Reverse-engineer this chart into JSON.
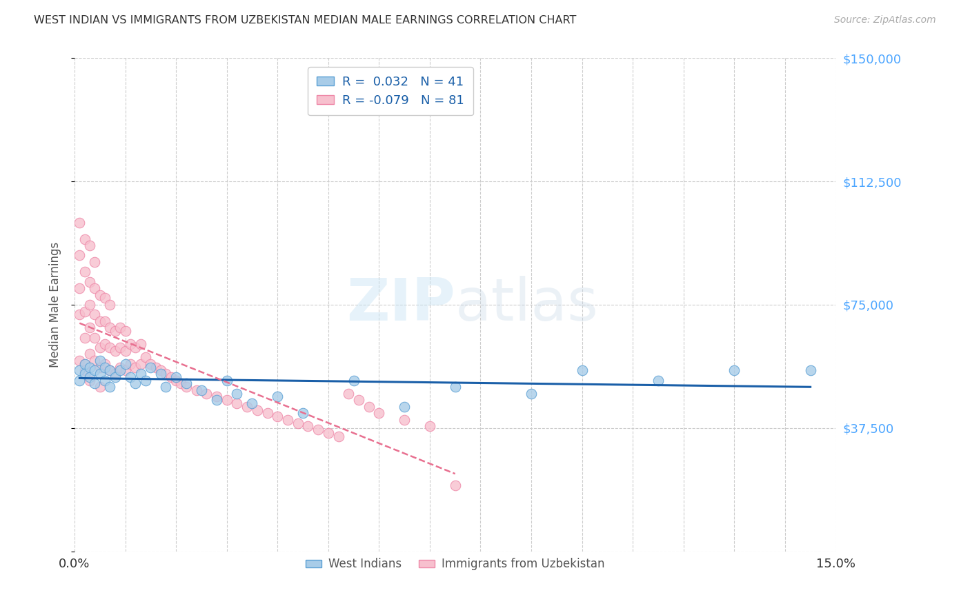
{
  "title": "WEST INDIAN VS IMMIGRANTS FROM UZBEKISTAN MEDIAN MALE EARNINGS CORRELATION CHART",
  "source": "Source: ZipAtlas.com",
  "ylabel": "Median Male Earnings",
  "watermark": "ZIPatlas",
  "xlim": [
    0.0,
    0.15
  ],
  "ylim": [
    0,
    150000
  ],
  "yticks": [
    0,
    37500,
    75000,
    112500,
    150000
  ],
  "ytick_labels": [
    "",
    "$37,500",
    "$75,000",
    "$112,500",
    "$150,000"
  ],
  "legend_blue_r": "0.032",
  "legend_blue_n": "41",
  "legend_pink_r": "-0.079",
  "legend_pink_n": "81",
  "blue_scatter_color": "#a8cce8",
  "blue_edge_color": "#5a9fd4",
  "pink_scatter_color": "#f7c0ce",
  "pink_edge_color": "#ee88a8",
  "blue_line_color": "#1a5fa8",
  "pink_line_color": "#e87090",
  "grid_color": "#cccccc",
  "right_ytick_color": "#4da6ff",
  "west_indians_x": [
    0.001,
    0.001,
    0.002,
    0.002,
    0.003,
    0.003,
    0.004,
    0.004,
    0.005,
    0.005,
    0.006,
    0.006,
    0.007,
    0.007,
    0.008,
    0.009,
    0.01,
    0.011,
    0.012,
    0.013,
    0.014,
    0.015,
    0.017,
    0.018,
    0.02,
    0.022,
    0.025,
    0.028,
    0.03,
    0.032,
    0.035,
    0.04,
    0.045,
    0.055,
    0.065,
    0.075,
    0.09,
    0.1,
    0.115,
    0.13,
    0.145
  ],
  "west_indians_y": [
    55000,
    52000,
    57000,
    54000,
    56000,
    53000,
    55000,
    51000,
    58000,
    54000,
    56000,
    52000,
    55000,
    50000,
    53000,
    55000,
    57000,
    53000,
    51000,
    54000,
    52000,
    56000,
    54000,
    50000,
    53000,
    51000,
    49000,
    46000,
    52000,
    48000,
    45000,
    47000,
    42000,
    52000,
    44000,
    50000,
    48000,
    55000,
    52000,
    55000,
    55000
  ],
  "uzbek_x": [
    0.001,
    0.001,
    0.001,
    0.001,
    0.001,
    0.002,
    0.002,
    0.002,
    0.002,
    0.002,
    0.002,
    0.003,
    0.003,
    0.003,
    0.003,
    0.003,
    0.003,
    0.004,
    0.004,
    0.004,
    0.004,
    0.004,
    0.005,
    0.005,
    0.005,
    0.005,
    0.005,
    0.006,
    0.006,
    0.006,
    0.006,
    0.007,
    0.007,
    0.007,
    0.007,
    0.008,
    0.008,
    0.008,
    0.009,
    0.009,
    0.009,
    0.01,
    0.01,
    0.01,
    0.011,
    0.011,
    0.012,
    0.012,
    0.013,
    0.013,
    0.014,
    0.015,
    0.016,
    0.017,
    0.018,
    0.019,
    0.02,
    0.021,
    0.022,
    0.024,
    0.026,
    0.028,
    0.03,
    0.032,
    0.034,
    0.036,
    0.038,
    0.04,
    0.042,
    0.044,
    0.046,
    0.048,
    0.05,
    0.052,
    0.054,
    0.056,
    0.058,
    0.06,
    0.065,
    0.07,
    0.075
  ],
  "uzbek_y": [
    58000,
    72000,
    80000,
    90000,
    100000,
    57000,
    65000,
    73000,
    85000,
    95000,
    55000,
    60000,
    68000,
    75000,
    82000,
    93000,
    52000,
    58000,
    65000,
    72000,
    80000,
    88000,
    56000,
    62000,
    70000,
    78000,
    50000,
    57000,
    63000,
    70000,
    77000,
    55000,
    62000,
    68000,
    75000,
    54000,
    61000,
    67000,
    56000,
    62000,
    68000,
    55000,
    61000,
    67000,
    57000,
    63000,
    56000,
    62000,
    57000,
    63000,
    59000,
    57000,
    56000,
    55000,
    54000,
    53000,
    52000,
    51000,
    50000,
    49000,
    48000,
    47000,
    46000,
    45000,
    44000,
    43000,
    42000,
    41000,
    40000,
    39000,
    38000,
    37000,
    36000,
    35000,
    48000,
    46000,
    44000,
    42000,
    40000,
    38000,
    20000
  ]
}
